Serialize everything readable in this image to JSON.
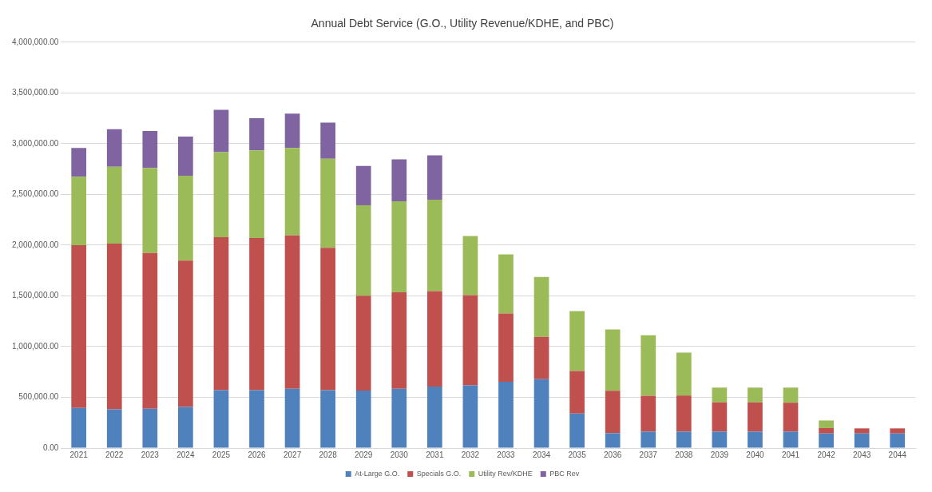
{
  "chart_data": {
    "type": "bar",
    "stacked": true,
    "title": "Annual Debt Service (G.O., Utility Revenue/KDHE, and PBC)",
    "categories": [
      "2021",
      "2022",
      "2023",
      "2024",
      "2025",
      "2026",
      "2027",
      "2028",
      "2029",
      "2030",
      "2031",
      "2032",
      "2033",
      "2034",
      "2035",
      "2036",
      "2037",
      "2038",
      "2039",
      "2040",
      "2041",
      "2042",
      "2043",
      "2044"
    ],
    "series": [
      {
        "name": "At-Large G.O.",
        "color": "#4f81bd",
        "values": [
          395000,
          382000,
          388000,
          406000,
          570000,
          570000,
          585000,
          570000,
          567000,
          585000,
          607000,
          618000,
          653000,
          678000,
          340000,
          147000,
          162000,
          162000,
          162000,
          162000,
          162000,
          144000,
          144000,
          144000
        ]
      },
      {
        "name": "Specials G.O.",
        "color": "#c0504d",
        "values": [
          1605000,
          1632000,
          1535000,
          1441000,
          1507000,
          1501000,
          1511000,
          1404000,
          934000,
          950000,
          940000,
          890000,
          674000,
          418000,
          419000,
          418000,
          353000,
          356000,
          288000,
          288000,
          285000,
          53000,
          50000,
          50000
        ]
      },
      {
        "name": "Utility Rev/KDHE",
        "color": "#9bbb59",
        "values": [
          675000,
          758000,
          837000,
          837000,
          840000,
          862000,
          861000,
          877000,
          892000,
          897000,
          900000,
          581000,
          581000,
          590000,
          590000,
          603000,
          597000,
          422000,
          146000,
          146000,
          149000,
          75000,
          null,
          null
        ]
      },
      {
        "name": "PBC Rev",
        "color": "#8064a2",
        "values": [
          282000,
          370000,
          364000,
          385000,
          416000,
          318000,
          339000,
          357000,
          388000,
          413000,
          437000,
          null,
          null,
          null,
          null,
          null,
          null,
          null,
          null,
          null,
          null,
          null,
          null,
          null
        ]
      }
    ],
    "ylim": [
      0,
      4000000
    ],
    "yticks": [
      {
        "value": 0,
        "label": "0.00"
      },
      {
        "value": 500000,
        "label": "500,000.00"
      },
      {
        "value": 1000000,
        "label": "1,000,000.00"
      },
      {
        "value": 1500000,
        "label": "1,500,000.00"
      },
      {
        "value": 2000000,
        "label": "2,000,000.00"
      },
      {
        "value": 2500000,
        "label": "2,500,000.00"
      },
      {
        "value": 3000000,
        "label": "3,000,000.00"
      },
      {
        "value": 3500000,
        "label": "3,500,000.00"
      },
      {
        "value": 4000000,
        "label": "4,000,000.00"
      }
    ],
    "grid": "y",
    "legend": "bottom"
  }
}
